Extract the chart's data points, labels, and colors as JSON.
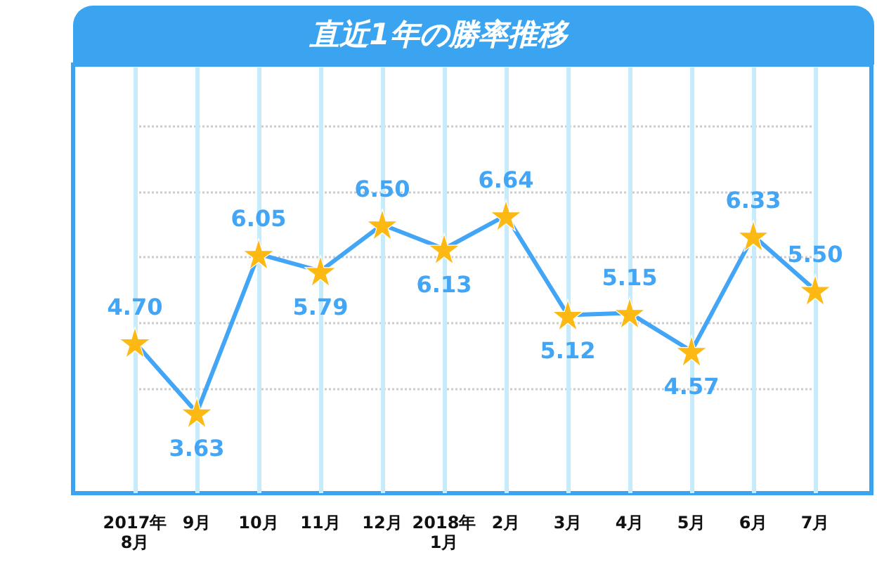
{
  "chart_data": {
    "type": "line",
    "title": "直近1年の勝率推移",
    "categories": [
      "2017年\n8月",
      "9月",
      "10月",
      "11月",
      "12月",
      "2018年\n1月",
      "2月",
      "3月",
      "4月",
      "5月",
      "6月",
      "7月"
    ],
    "series": [
      {
        "color": "#42a5f5",
        "colors": [
          "#fdb913",
          "#fdb913",
          "#fdb913",
          "#fdb913",
          "#fdb913",
          "#fdb913",
          "#fdb913",
          "#fdb913",
          "#fdb913",
          "#fdb913",
          "#fdb913",
          "#fdb913"
        ],
        "values": [
          4.7,
          3.63,
          6.05,
          5.79,
          6.5,
          6.13,
          6.64,
          5.12,
          5.15,
          4.57,
          6.33,
          5.5
        ],
        "value_labels": [
          "4.70",
          "3.63",
          "6.05",
          "5.79",
          "6.50",
          "6.13",
          "6.64",
          "5.12",
          "5.15",
          "4.57",
          "6.33",
          "5.50"
        ]
      }
    ],
    "ylim": [
      2.4,
      8.9
    ],
    "yticks": [
      {
        "value": 4,
        "label": null
      },
      {
        "value": 5,
        "label": null
      },
      {
        "value": 6,
        "label": null
      },
      {
        "value": 7,
        "label": null
      },
      {
        "value": 8,
        "label": null
      }
    ],
    "tick_labels": "x",
    "grid": true,
    "marker": "star",
    "line_style": "solid"
  }
}
